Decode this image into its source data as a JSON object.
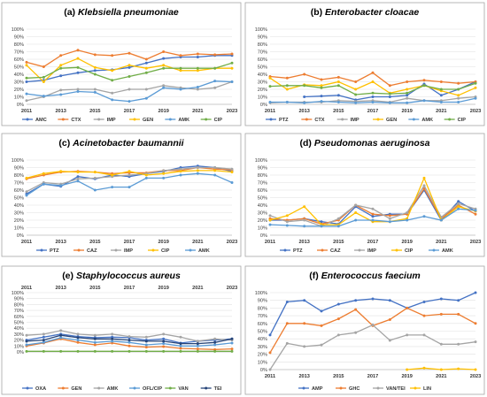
{
  "chart_data": [
    {
      "type": "line",
      "label": "(a)",
      "title": "Klebsiella pneumoniae",
      "x": [
        2011,
        2012,
        2013,
        2014,
        2015,
        2016,
        2017,
        2018,
        2019,
        2020,
        2021,
        2022,
        2023
      ],
      "xticklabels": [
        "2011",
        "2013",
        "2015",
        "2017",
        "2019",
        "2021",
        "2023"
      ],
      "ylim": [
        0,
        100
      ],
      "yticklabels": [
        "0%",
        "10%",
        "20%",
        "30%",
        "40%",
        "50%",
        "60%",
        "70%",
        "80%",
        "90%",
        "100%"
      ],
      "legend_position": "bottom",
      "series": [
        {
          "name": "AMC",
          "color": "#4472C4",
          "values": [
            30,
            32,
            38,
            42,
            45,
            46,
            49,
            55,
            61,
            63,
            63,
            65,
            65
          ]
        },
        {
          "name": "CTX",
          "color": "#ED7D31",
          "values": [
            56,
            50,
            65,
            72,
            66,
            65,
            68,
            60,
            70,
            65,
            67,
            66,
            67
          ]
        },
        {
          "name": "IMP",
          "color": "#A5A5A5",
          "values": [
            5,
            10,
            19,
            20,
            20,
            15,
            20,
            20,
            25,
            22,
            20,
            22,
            30
          ]
        },
        {
          "name": "GEN",
          "color": "#FFC000",
          "values": [
            52,
            30,
            52,
            61,
            49,
            45,
            52,
            48,
            52,
            45,
            45,
            48,
            48
          ]
        },
        {
          "name": "AMK",
          "color": "#5B9BD5",
          "values": [
            14,
            11,
            13,
            17,
            16,
            6,
            4,
            8,
            22,
            20,
            23,
            31,
            30
          ]
        },
        {
          "name": "CIP",
          "color": "#70AD47",
          "values": [
            35,
            36,
            48,
            49,
            40,
            32,
            37,
            42,
            48,
            48,
            48,
            48,
            55
          ]
        }
      ]
    },
    {
      "type": "line",
      "label": "(b)",
      "title": "Enterobacter cloacae",
      "x": [
        2011,
        2012,
        2013,
        2014,
        2015,
        2016,
        2017,
        2018,
        2019,
        2020,
        2021,
        2022,
        2023
      ],
      "xticklabels": [
        "2011",
        "2013",
        "2015",
        "2017",
        "2019",
        "2021",
        "2023"
      ],
      "ylim": [
        0,
        100
      ],
      "yticklabels": [
        "0%",
        "10%",
        "20%",
        "30%",
        "40%",
        "50%",
        "60%",
        "70%",
        "80%",
        "90%",
        "100%"
      ],
      "legend_position": "bottom",
      "series": [
        {
          "name": "PTZ",
          "color": "#4472C4",
          "values": [
            null,
            null,
            10,
            11,
            12,
            6,
            10,
            10,
            12,
            27,
            12,
            20,
            30
          ]
        },
        {
          "name": "CTX",
          "color": "#ED7D31",
          "values": [
            37,
            35,
            40,
            33,
            36,
            30,
            42,
            25,
            30,
            32,
            30,
            28,
            30
          ]
        },
        {
          "name": "IMP",
          "color": "#A5A5A5",
          "values": [
            2,
            3,
            3,
            3,
            5,
            4,
            5,
            3,
            8,
            5,
            5,
            8,
            10
          ]
        },
        {
          "name": "GEN",
          "color": "#FFC000",
          "values": [
            35,
            20,
            26,
            25,
            30,
            20,
            30,
            15,
            20,
            25,
            18,
            12,
            22
          ]
        },
        {
          "name": "AMK",
          "color": "#5B9BD5",
          "values": [
            3,
            3,
            2,
            4,
            3,
            2,
            3,
            2,
            2,
            5,
            3,
            3,
            8
          ]
        },
        {
          "name": "CIP",
          "color": "#70AD47",
          "values": [
            24,
            25,
            25,
            22,
            25,
            13,
            15,
            14,
            15,
            25,
            20,
            20,
            28
          ]
        }
      ]
    },
    {
      "type": "line",
      "label": "(c)",
      "title": "Acinetobacter baumannii",
      "x": [
        2011,
        2012,
        2013,
        2014,
        2015,
        2016,
        2017,
        2018,
        2019,
        2020,
        2021,
        2022,
        2023
      ],
      "xticklabels": [
        "2011",
        "2013",
        "2015",
        "2017",
        "2019",
        "2021",
        "2023"
      ],
      "ylim": [
        0,
        100
      ],
      "yticklabels": [
        "0%",
        "10%",
        "20%",
        "30%",
        "40%",
        "50%",
        "60%",
        "70%",
        "80%",
        "90%",
        "100%"
      ],
      "legend_position": "bottom",
      "series": [
        {
          "name": "PTZ",
          "color": "#4472C4",
          "values": [
            55,
            68,
            65,
            78,
            75,
            80,
            78,
            82,
            85,
            90,
            92,
            90,
            85
          ]
        },
        {
          "name": "CAZ",
          "color": "#ED7D31",
          "values": [
            75,
            80,
            84,
            85,
            84,
            82,
            83,
            83,
            86,
            86,
            90,
            88,
            87
          ]
        },
        {
          "name": "IMP",
          "color": "#A5A5A5",
          "values": [
            58,
            70,
            68,
            75,
            76,
            78,
            80,
            82,
            86,
            88,
            90,
            90,
            88
          ]
        },
        {
          "name": "CIP",
          "color": "#FFC000",
          "values": [
            76,
            82,
            85,
            84,
            84,
            80,
            85,
            80,
            82,
            85,
            86,
            86,
            84
          ]
        },
        {
          "name": "AMK",
          "color": "#5B9BD5",
          "values": [
            53,
            68,
            66,
            72,
            60,
            64,
            64,
            76,
            76,
            80,
            82,
            80,
            70
          ]
        }
      ]
    },
    {
      "type": "line",
      "label": "(d)",
      "title": "Pseudomonas aeruginosa",
      "x": [
        2011,
        2012,
        2013,
        2014,
        2015,
        2016,
        2017,
        2018,
        2019,
        2020,
        2021,
        2022,
        2023
      ],
      "xticklabels": [
        "2011",
        "2013",
        "2015",
        "2017",
        "2019",
        "2021",
        "2023"
      ],
      "ylim": [
        0,
        100
      ],
      "yticklabels": [
        "0%",
        "10%",
        "20%",
        "30%",
        "40%",
        "50%",
        "60%",
        "70%",
        "80%",
        "90%",
        "100%"
      ],
      "legend_position": "bottom",
      "series": [
        {
          "name": "PTZ",
          "color": "#4472C4",
          "values": [
            20,
            20,
            22,
            18,
            15,
            38,
            25,
            28,
            28,
            60,
            20,
            45,
            32
          ]
        },
        {
          "name": "CAZ",
          "color": "#ED7D31",
          "values": [
            22,
            20,
            22,
            15,
            20,
            40,
            28,
            26,
            28,
            62,
            22,
            40,
            28
          ]
        },
        {
          "name": "IMP",
          "color": "#A5A5A5",
          "values": [
            26,
            18,
            20,
            12,
            22,
            40,
            35,
            22,
            30,
            66,
            24,
            42,
            35
          ]
        },
        {
          "name": "CIP",
          "color": "#FFC000",
          "values": [
            20,
            26,
            38,
            14,
            14,
            30,
            18,
            18,
            22,
            76,
            20,
            38,
            32
          ]
        },
        {
          "name": "AMK",
          "color": "#5B9BD5",
          "values": [
            14,
            13,
            12,
            12,
            12,
            20,
            20,
            18,
            20,
            25,
            20,
            35,
            33
          ]
        }
      ]
    },
    {
      "type": "line",
      "label": "(e)",
      "title": "Staphylococcus aureus",
      "x": [
        2011,
        2012,
        2013,
        2014,
        2015,
        2016,
        2017,
        2018,
        2019,
        2020,
        2021,
        2022,
        2023
      ],
      "xticklabels": [
        "2011",
        "2013",
        "2015",
        "2017",
        "2019",
        "2021",
        "2023"
      ],
      "ylim": [
        0,
        100
      ],
      "yticklabels": [
        "0%",
        "10%",
        "20%",
        "30%",
        "40%",
        "50%",
        "60%",
        "70%",
        "80%",
        "90%",
        "100%"
      ],
      "legend_position": "bottom",
      "series": [
        {
          "name": "OXA",
          "color": "#4472C4",
          "values": [
            20,
            25,
            30,
            26,
            24,
            25,
            24,
            20,
            22,
            15,
            18,
            20,
            22
          ]
        },
        {
          "name": "GEN",
          "color": "#ED7D31",
          "values": [
            10,
            15,
            22,
            16,
            12,
            15,
            10,
            8,
            9,
            6,
            5,
            4,
            5
          ]
        },
        {
          "name": "AMK",
          "color": "#A5A5A5",
          "values": [
            28,
            30,
            36,
            30,
            28,
            30,
            26,
            25,
            30,
            25,
            18,
            22,
            20
          ]
        },
        {
          "name": "OFL/CIP",
          "color": "#5B9BD5",
          "values": [
            12,
            16,
            24,
            20,
            16,
            18,
            16,
            12,
            14,
            10,
            10,
            12,
            15
          ]
        },
        {
          "name": "VAN",
          "color": "#70AD47",
          "values": [
            1,
            1,
            1,
            1,
            1,
            1,
            1,
            1,
            1,
            1,
            1,
            1,
            1
          ]
        },
        {
          "name": "TEI",
          "color": "#264478",
          "values": [
            18,
            20,
            28,
            24,
            22,
            22,
            20,
            18,
            18,
            14,
            14,
            16,
            22
          ]
        }
      ]
    },
    {
      "type": "line",
      "label": "(f)",
      "title": "Enterococcus faecium",
      "x": [
        2011,
        2012,
        2013,
        2014,
        2015,
        2016,
        2017,
        2018,
        2019,
        2020,
        2021,
        2022,
        2023
      ],
      "xticklabels": [
        "2011",
        "2013",
        "2015",
        "2017",
        "2019",
        "2021",
        "2023"
      ],
      "ylim": [
        0,
        100
      ],
      "yticklabels": [
        "0%",
        "10%",
        "20%",
        "30%",
        "40%",
        "50%",
        "60%",
        "70%",
        "80%",
        "90%",
        "100%"
      ],
      "legend_position": "bottom",
      "series": [
        {
          "name": "AMP",
          "color": "#4472C4",
          "values": [
            45,
            88,
            90,
            76,
            85,
            90,
            92,
            90,
            80,
            88,
            92,
            90,
            100
          ]
        },
        {
          "name": "GHC",
          "color": "#ED7D31",
          "values": [
            22,
            60,
            60,
            57,
            66,
            78,
            57,
            65,
            80,
            70,
            72,
            72,
            60
          ]
        },
        {
          "name": "VAN/TEI",
          "color": "#A5A5A5",
          "values": [
            0,
            34,
            30,
            32,
            45,
            48,
            58,
            38,
            45,
            45,
            33,
            33,
            36
          ]
        },
        {
          "name": "LIN",
          "color": "#FFC000",
          "values": [
            null,
            null,
            null,
            null,
            null,
            null,
            null,
            null,
            0,
            2,
            0,
            1,
            0
          ]
        }
      ]
    }
  ]
}
